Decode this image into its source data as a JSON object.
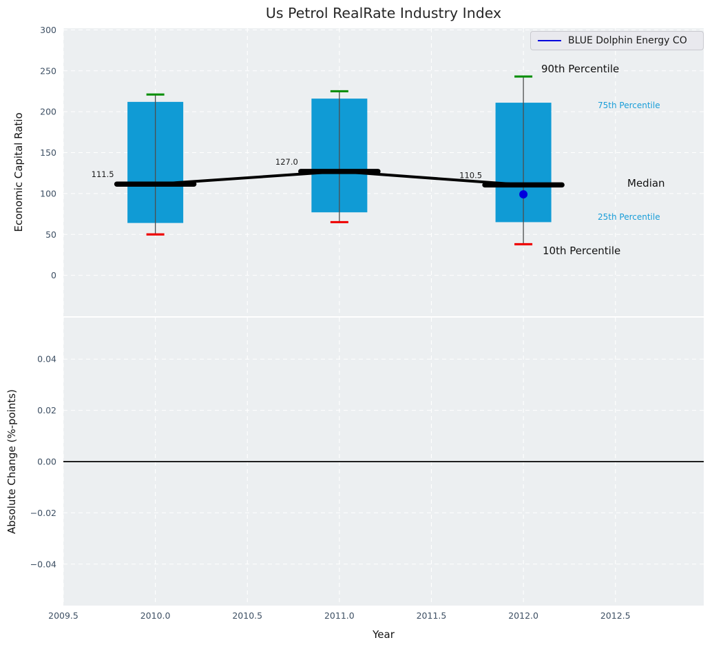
{
  "colors": {
    "panel_bg": "#eceff1",
    "grid": "#ffffff",
    "tick": "#3d4f63",
    "box": "#109bd5",
    "whisker": "#4d4d4d",
    "cap90": "#0a8f0a",
    "cap10": "#ee0000",
    "median": "#000000",
    "company": "#0000dd",
    "annotation_blue": "#189dd8",
    "annotation_black": "#111111"
  },
  "chart_data": {
    "type": "boxplot-timeseries",
    "title": "Us Petrol RealRate Industry Index",
    "xlabel": "Year",
    "xlim": [
      2009.5,
      2012.98
    ],
    "grid": "white dashed on light gray panels",
    "legend_position": "upper right",
    "xticks": [
      {
        "v": 2009.5,
        "label": "2009.5"
      },
      {
        "v": 2010.0,
        "label": "2010.0"
      },
      {
        "v": 2010.5,
        "label": "2010.5"
      },
      {
        "v": 2011.0,
        "label": "2011.0"
      },
      {
        "v": 2011.5,
        "label": "2011.5"
      },
      {
        "v": 2012.0,
        "label": "2012.0"
      },
      {
        "v": 2012.5,
        "label": "2012.5"
      }
    ],
    "top": {
      "ylabel": "Economic Capital Ratio",
      "ylim": [
        -50,
        302
      ],
      "yticks": [
        {
          "v": 0,
          "label": "0"
        },
        {
          "v": 50,
          "label": "50"
        },
        {
          "v": 100,
          "label": "100"
        },
        {
          "v": 150,
          "label": "150"
        },
        {
          "v": 200,
          "label": "200"
        },
        {
          "v": 250,
          "label": "250"
        },
        {
          "v": 300,
          "label": "300"
        }
      ],
      "boxes": [
        {
          "year": 2010,
          "p10": 50,
          "p25": 64,
          "median": 111.5,
          "p75": 212,
          "p90": 221,
          "median_label": "111.5"
        },
        {
          "year": 2011,
          "p10": 65,
          "p25": 77,
          "median": 127.0,
          "p75": 216,
          "p90": 225,
          "median_label": "127.0"
        },
        {
          "year": 2012,
          "p10": 38,
          "p25": 65,
          "median": 110.5,
          "p75": 211,
          "p90": 243,
          "median_label": "110.5"
        }
      ],
      "company": {
        "name": "BLUE Dolphin Energy CO",
        "points": [
          {
            "year": 2012,
            "value": 99
          }
        ]
      }
    },
    "bottom": {
      "ylabel": "Absolute Change (%-points)",
      "ylim": [
        -0.0562,
        0.0562
      ],
      "zero_line": 0.0,
      "yticks": [
        {
          "v": -0.04,
          "label": "−0.04"
        },
        {
          "v": -0.02,
          "label": "−0.02"
        },
        {
          "v": 0.0,
          "label": "0.00"
        },
        {
          "v": 0.02,
          "label": "0.02"
        },
        {
          "v": 0.04,
          "label": "0.04"
        }
      ]
    },
    "annotations": {
      "p90": "90th Percentile",
      "p75": "75th Percentile",
      "median": "Median",
      "p25": "25th Percentile",
      "p10": "10th Percentile"
    }
  }
}
